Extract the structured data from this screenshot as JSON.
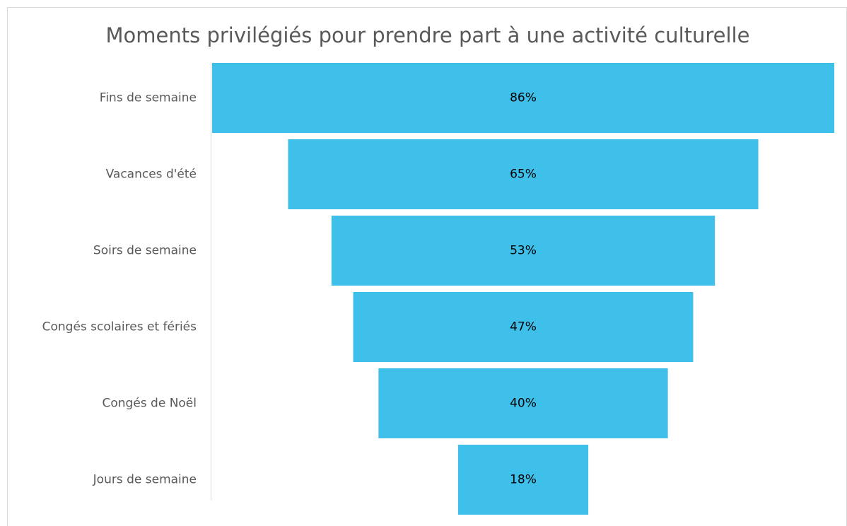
{
  "chart_data": {
    "type": "funnel",
    "title": "Moments privilégiés pour prendre part à une activité culturelle",
    "categories": [
      "Fins de semaine",
      "Vacances d'été",
      "Soirs de semaine",
      "Congés scolaires et fériés",
      "Congés de Noël",
      "Jours de semaine"
    ],
    "values": [
      86,
      65,
      53,
      47,
      40,
      18
    ],
    "value_labels": [
      "86%",
      "65%",
      "53%",
      "47%",
      "40%",
      "18%"
    ],
    "color": "#3fc0eb"
  }
}
